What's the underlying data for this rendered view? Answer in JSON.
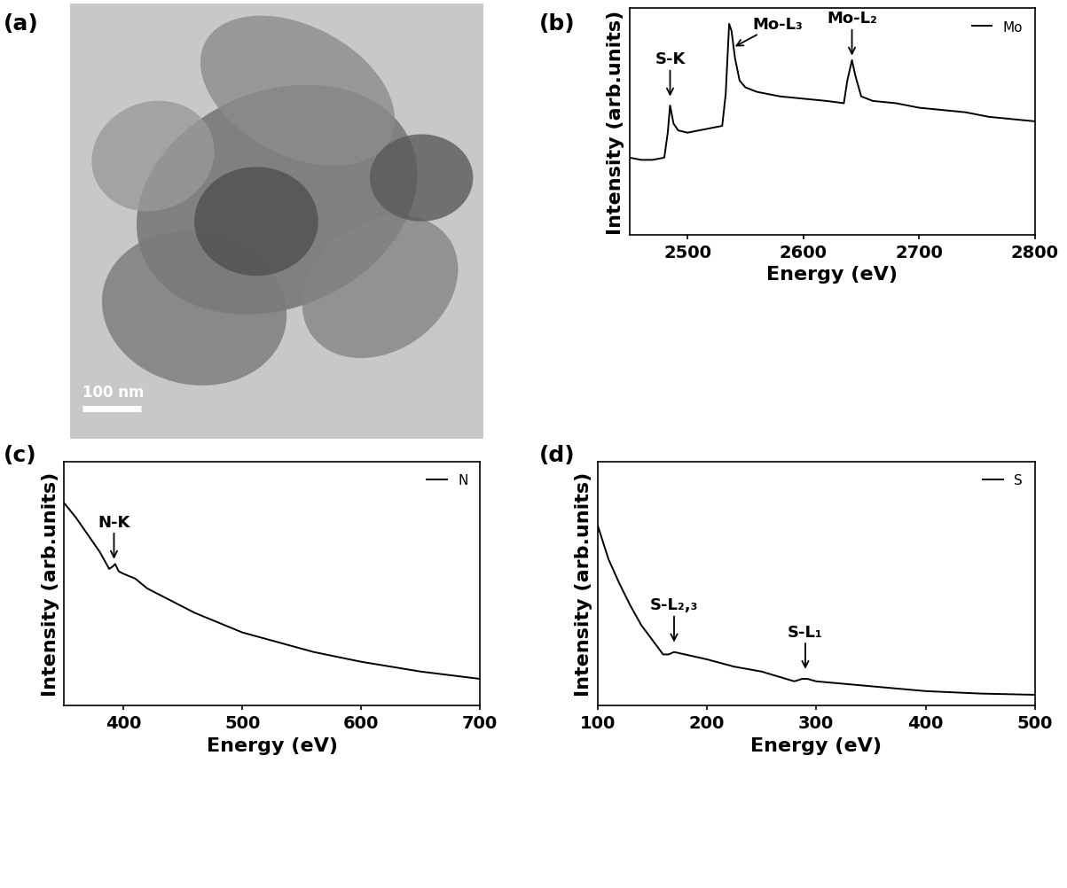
{
  "chart_data": [
    {
      "type": "image",
      "title": "(a)",
      "scale_bar_label": "100 nm"
    },
    {
      "type": "line",
      "title": "(b)",
      "x_label": "Energy (eV)",
      "y_label": "Intensity (arb.units)",
      "tick_labels": "x",
      "legend": "upper right",
      "xlim": [
        2450,
        2800
      ],
      "xticks": [
        2500,
        2600,
        2700,
        2800
      ],
      "ylim": [
        0,
        1
      ],
      "yticks": [],
      "x": [
        2450,
        2460,
        2470,
        2480,
        2483,
        2485,
        2488,
        2492,
        2500,
        2510,
        2520,
        2530,
        2533,
        2536,
        2538,
        2541,
        2545,
        2550,
        2560,
        2580,
        2600,
        2620,
        2635,
        2638,
        2642,
        2645,
        2650,
        2660,
        2680,
        2700,
        2720,
        2740,
        2760,
        2780,
        2800
      ],
      "series": [
        {
          "name": "Mo",
          "color": "#000000",
          "values": [
            0.34,
            0.33,
            0.33,
            0.34,
            0.45,
            0.57,
            0.49,
            0.46,
            0.45,
            0.46,
            0.47,
            0.48,
            0.62,
            0.93,
            0.9,
            0.78,
            0.68,
            0.65,
            0.63,
            0.61,
            0.6,
            0.59,
            0.58,
            0.68,
            0.77,
            0.7,
            0.61,
            0.59,
            0.58,
            0.56,
            0.55,
            0.54,
            0.52,
            0.51,
            0.5
          ]
        }
      ],
      "annotations": [
        {
          "text": "S-K",
          "x": 2485,
          "y": 0.61
        },
        {
          "text": "Mo-L₃",
          "x": 2541,
          "y": 0.83
        },
        {
          "text": "Mo-L₂",
          "x": 2642,
          "y": 0.79
        }
      ]
    },
    {
      "type": "line",
      "title": "(c)",
      "x_label": "Energy (eV)",
      "y_label": "Intensity (arb.units)",
      "tick_labels": "x",
      "legend": "upper right",
      "xlim": [
        350,
        700
      ],
      "xticks": [
        400,
        500,
        600,
        700
      ],
      "ylim": [
        0,
        1
      ],
      "yticks": [],
      "x": [
        350,
        360,
        370,
        380,
        388,
        391,
        393,
        396,
        400,
        405,
        410,
        420,
        440,
        460,
        480,
        500,
        530,
        560,
        600,
        650,
        700
      ],
      "series": [
        {
          "name": "N",
          "color": "#000000",
          "values": [
            0.83,
            0.77,
            0.7,
            0.63,
            0.56,
            0.57,
            0.58,
            0.55,
            0.54,
            0.53,
            0.52,
            0.48,
            0.43,
            0.38,
            0.34,
            0.3,
            0.26,
            0.22,
            0.18,
            0.14,
            0.11
          ]
        }
      ],
      "annotations": [
        {
          "text": "N-K",
          "x": 392,
          "y": 0.6
        }
      ]
    },
    {
      "type": "line",
      "title": "(d)",
      "x_label": "Energy (eV)",
      "y_label": "Intensity (arb.units)",
      "tick_labels": "x",
      "legend": "upper right",
      "xlim": [
        100,
        500
      ],
      "xticks": [
        100,
        200,
        300,
        400,
        500
      ],
      "ylim": [
        0,
        1
      ],
      "yticks": [],
      "x": [
        100,
        110,
        120,
        130,
        140,
        150,
        160,
        165,
        170,
        180,
        200,
        225,
        250,
        280,
        287,
        292,
        300,
        350,
        400,
        450,
        500
      ],
      "series": [
        {
          "name": "S",
          "color": "#000000",
          "values": [
            0.74,
            0.6,
            0.5,
            0.41,
            0.33,
            0.27,
            0.21,
            0.21,
            0.22,
            0.21,
            0.19,
            0.16,
            0.14,
            0.1,
            0.11,
            0.11,
            0.1,
            0.08,
            0.06,
            0.05,
            0.045
          ]
        }
      ],
      "annotations": [
        {
          "text": "S-L₂,₃",
          "x": 170,
          "y": 0.26
        },
        {
          "text": "S-L₁",
          "x": 290,
          "y": 0.15
        }
      ]
    }
  ]
}
